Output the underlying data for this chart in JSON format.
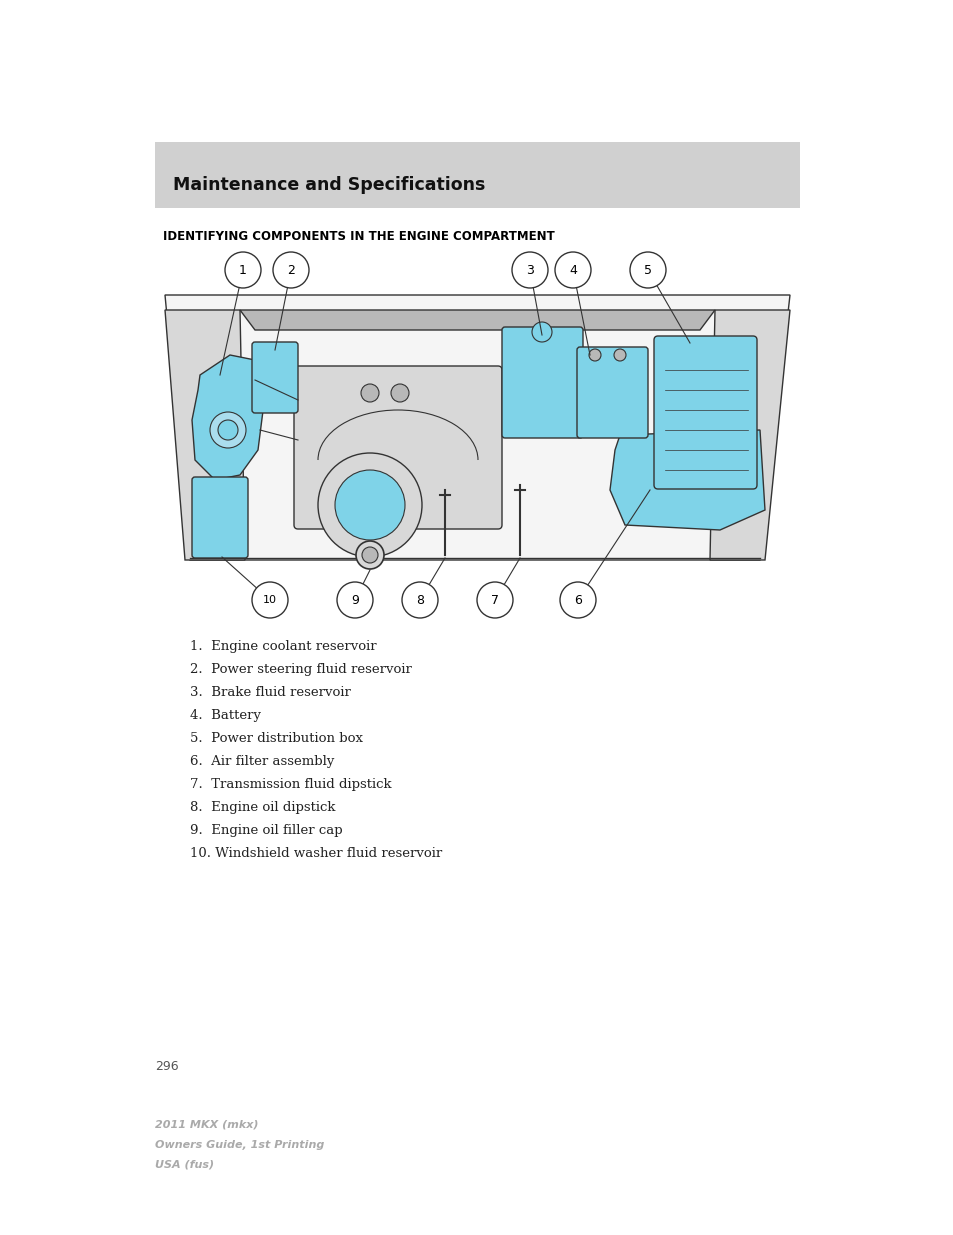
{
  "page_bg": "#ffffff",
  "header_bg": "#d0d0d0",
  "header_text": "Maintenance and Specifications",
  "header_text_color": "#111111",
  "header_fontsize": 12.5,
  "section_title": "IDENTIFYING COMPONENTS IN THE ENGINE COMPARTMENT",
  "section_title_fontsize": 8.5,
  "section_title_color": "#000000",
  "list_items": [
    "1.  Engine coolant reservoir",
    "2.  Power steering fluid reservoir",
    "3.  Brake fluid reservoir",
    "4.  Battery",
    "5.  Power distribution box",
    "6.  Air filter assembly",
    "7.  Transmission fluid dipstick",
    "8.  Engine oil dipstick",
    "9.  Engine oil filler cap",
    "10. Windshield washer fluid reservoir"
  ],
  "list_fontsize": 9.5,
  "list_color": "#222222",
  "page_number": "296",
  "page_number_color": "#555555",
  "footer_lines": [
    "2011 MKX (mkx)",
    "Owners Guide, 1st Printing",
    "USA (fus)"
  ],
  "footer_color": "#aaaaaa",
  "footer_fontsize": 8,
  "engine_blue": "#7fd3e8",
  "outline_color": "#333333",
  "light_gray": "#d8d8d8",
  "mid_gray": "#b8b8b8",
  "dark_gray": "#888888"
}
